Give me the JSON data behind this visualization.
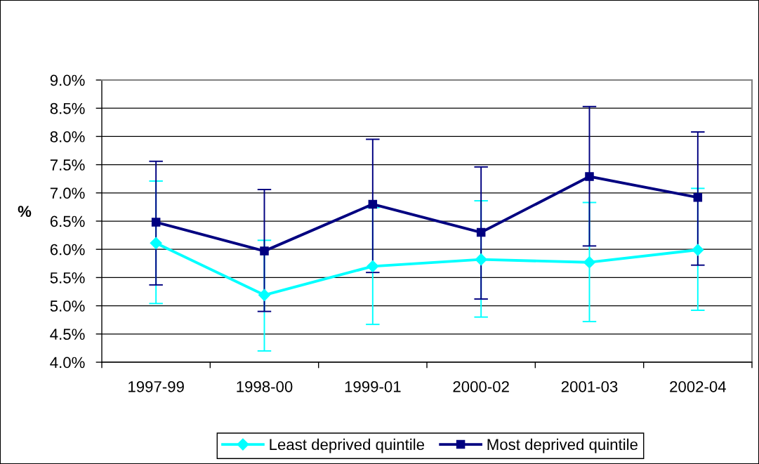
{
  "chart_data": {
    "type": "line",
    "ylabel": "%",
    "categories": [
      "1997-99",
      "1998-00",
      "1999-01",
      "2000-02",
      "2001-03",
      "2002-04"
    ],
    "series": [
      {
        "name": "Least deprived quintile",
        "color": "#00ffff",
        "marker": "diamond",
        "values": [
          6.11,
          5.19,
          5.7,
          5.82,
          5.77,
          5.99
        ],
        "errors": [
          [
            5.04,
            7.21
          ],
          [
            4.2,
            6.16
          ],
          [
            4.67,
            6.74
          ],
          [
            4.8,
            6.86
          ],
          [
            4.72,
            6.83
          ],
          [
            4.92,
            7.08
          ]
        ]
      },
      {
        "name": "Most deprived quintile",
        "color": "#000080",
        "marker": "square",
        "values": [
          6.48,
          5.97,
          6.8,
          6.3,
          7.29,
          6.92
        ],
        "errors": [
          [
            5.37,
            7.56
          ],
          [
            4.9,
            7.06
          ],
          [
            5.59,
            7.95
          ],
          [
            5.12,
            7.46
          ],
          [
            6.06,
            8.53
          ],
          [
            5.72,
            8.08
          ]
        ]
      }
    ],
    "ylim": [
      4.0,
      9.0
    ],
    "yticks": [
      {
        "value": 4.0,
        "label": "4.0%"
      },
      {
        "value": 4.5,
        "label": "4.5%"
      },
      {
        "value": 5.0,
        "label": "5.0%"
      },
      {
        "value": 5.5,
        "label": "5.5%"
      },
      {
        "value": 6.0,
        "label": "6.0%"
      },
      {
        "value": 6.5,
        "label": "6.5%"
      },
      {
        "value": 7.0,
        "label": "7.0%"
      },
      {
        "value": 7.5,
        "label": "7.5%"
      },
      {
        "value": 8.0,
        "label": "8.0%"
      },
      {
        "value": 8.5,
        "label": "8.5%"
      },
      {
        "value": 9.0,
        "label": "9.0%"
      }
    ],
    "grid": "y",
    "legend": "bottom",
    "line_style": "solid"
  }
}
